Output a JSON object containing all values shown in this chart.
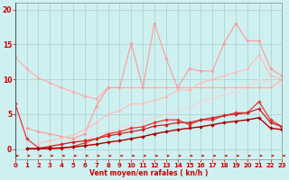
{
  "x": [
    0,
    1,
    2,
    3,
    4,
    5,
    6,
    7,
    8,
    9,
    10,
    11,
    12,
    13,
    14,
    15,
    16,
    17,
    18,
    19,
    20,
    21,
    22,
    23
  ],
  "series": [
    {
      "y": [
        13.2,
        11.5,
        10.2,
        9.5,
        8.8,
        8.2,
        7.6,
        7.2,
        8.8,
        8.8,
        8.8,
        8.8,
        8.8,
        8.8,
        8.8,
        8.8,
        8.8,
        8.8,
        8.8,
        8.8,
        8.8,
        8.8,
        8.8,
        10.0
      ],
      "color": "#ffaaaa",
      "lw": 0.8,
      "marker": "D",
      "ms": 1.8
    },
    {
      "y": [
        null,
        3.0,
        2.5,
        2.2,
        1.8,
        1.5,
        2.2,
        6.2,
        8.8,
        8.8,
        15.2,
        8.8,
        18.0,
        13.0,
        8.8,
        11.5,
        11.2,
        11.2,
        15.2,
        18.0,
        15.5,
        15.5,
        11.5,
        10.5
      ],
      "color": "#ff9999",
      "lw": 0.8,
      "marker": "D",
      "ms": 1.8
    },
    {
      "y": [
        null,
        null,
        0.8,
        1.2,
        1.6,
        2.0,
        2.8,
        3.8,
        5.0,
        5.5,
        6.5,
        6.5,
        7.0,
        7.5,
        8.5,
        8.5,
        9.5,
        10.0,
        10.5,
        11.0,
        11.5,
        13.5,
        10.5,
        10.0
      ],
      "color": "#ffbbbb",
      "lw": 0.8,
      "marker": "D",
      "ms": 1.8
    },
    {
      "y": [
        null,
        null,
        0.2,
        0.5,
        0.8,
        1.2,
        1.5,
        2.0,
        2.5,
        3.0,
        3.5,
        4.0,
        4.5,
        5.0,
        5.5,
        6.0,
        6.8,
        7.2,
        7.8,
        8.2,
        9.0,
        10.0,
        9.5,
        9.2
      ],
      "color": "#ffcccc",
      "lw": 0.7,
      "marker": null,
      "ms": 0
    },
    {
      "y": [
        6.5,
        1.5,
        0.2,
        0.1,
        0.1,
        0.4,
        0.9,
        1.5,
        2.2,
        2.5,
        3.0,
        3.2,
        3.8,
        4.2,
        4.2,
        3.5,
        4.2,
        4.2,
        4.8,
        5.2,
        5.2,
        6.8,
        4.2,
        3.2
      ],
      "color": "#ee3333",
      "lw": 0.9,
      "marker": "D",
      "ms": 2.0
    },
    {
      "y": [
        null,
        0.1,
        0.1,
        0.4,
        0.7,
        1.0,
        1.2,
        1.5,
        1.9,
        2.2,
        2.5,
        2.8,
        3.3,
        3.5,
        3.8,
        3.8,
        4.2,
        4.5,
        4.8,
        5.0,
        5.2,
        5.8,
        3.8,
        3.2
      ],
      "color": "#cc2222",
      "lw": 0.9,
      "marker": "D",
      "ms": 2.0
    },
    {
      "y": [
        null,
        0.05,
        0.05,
        0.1,
        0.2,
        0.3,
        0.5,
        0.7,
        1.0,
        1.2,
        1.5,
        1.8,
        2.2,
        2.5,
        2.8,
        3.0,
        3.2,
        3.5,
        3.8,
        4.0,
        4.2,
        4.5,
        3.0,
        2.8
      ],
      "color": "#aa0000",
      "lw": 1.0,
      "marker": "D",
      "ms": 2.0
    }
  ],
  "xlabel": "Vent moyen/en rafales ( kn/h )",
  "xlim": [
    0,
    23
  ],
  "ylim": [
    0,
    21
  ],
  "yticks": [
    0,
    5,
    10,
    15,
    20
  ],
  "xticks": [
    0,
    1,
    2,
    3,
    4,
    5,
    6,
    7,
    8,
    9,
    10,
    11,
    12,
    13,
    14,
    15,
    16,
    17,
    18,
    19,
    20,
    21,
    22,
    23
  ],
  "bg_color": "#cff0f0",
  "grid_color": "#a8d0d0",
  "text_color": "#cc0000",
  "axis_color": "#888888"
}
